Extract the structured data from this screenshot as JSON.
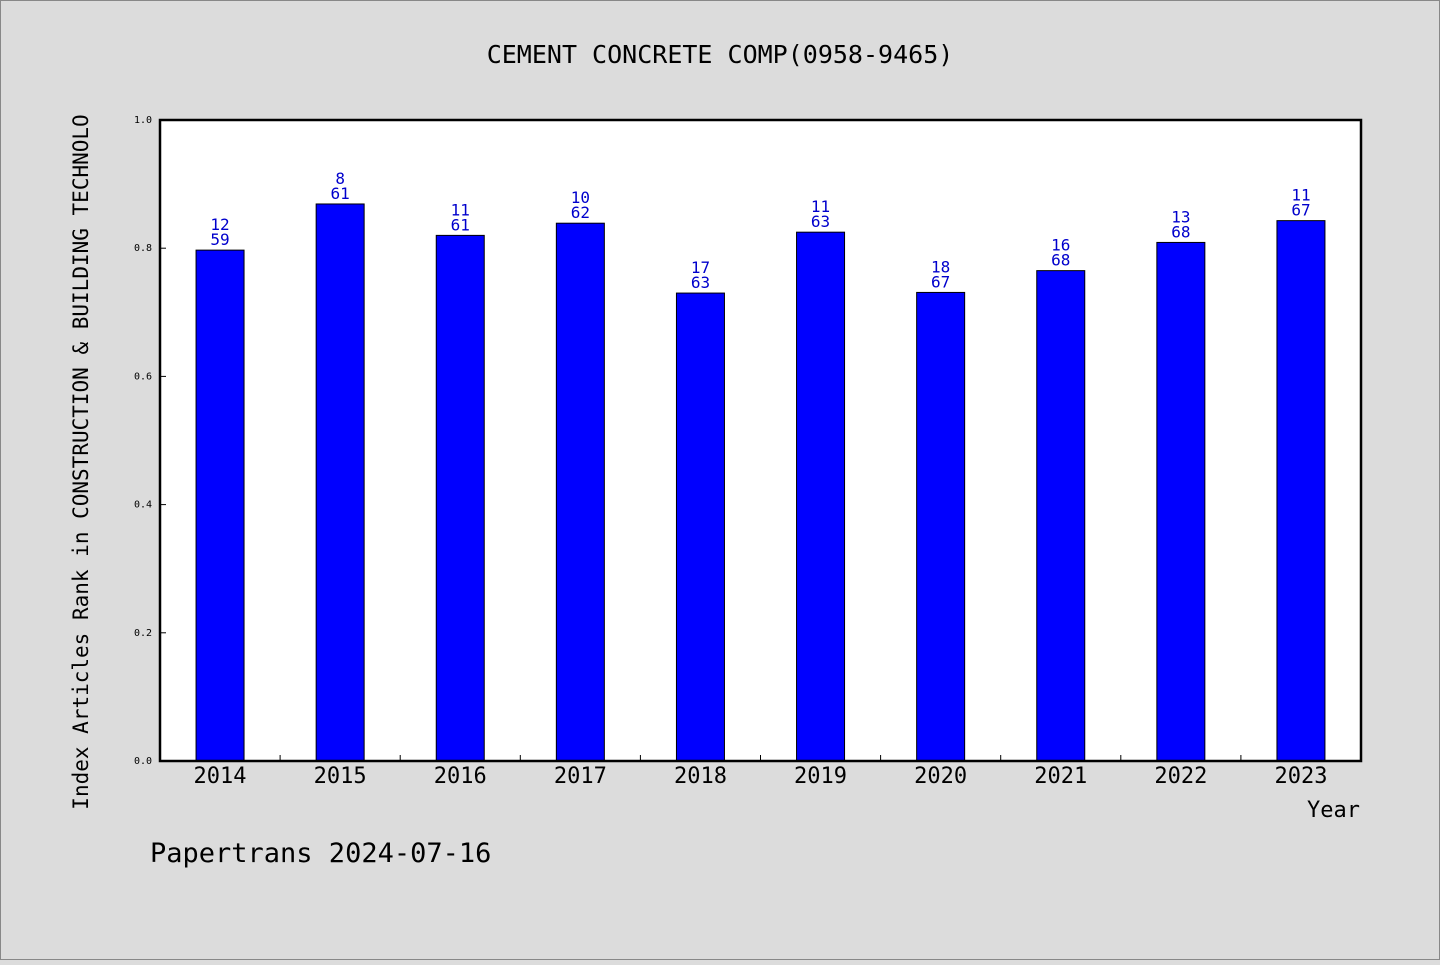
{
  "chart_data": {
    "type": "bar",
    "title": "CEMENT CONCRETE COMP(0958-9465)",
    "xlabel": "Year",
    "ylabel": "Index Articles Rank in CONSTRUCTION & BUILDING TECHNOLO",
    "ylim": [
      0,
      1.0
    ],
    "yticks": [
      "0.0",
      "0.2",
      "0.4",
      "0.6",
      "0.8",
      "1.0"
    ],
    "grid": false,
    "bar_color": "#0000ff",
    "label_color": "#0000cc",
    "categories": [
      "2014",
      "2015",
      "2016",
      "2017",
      "2018",
      "2019",
      "2020",
      "2021",
      "2022",
      "2023"
    ],
    "values": [
      0.797,
      0.869,
      0.82,
      0.839,
      0.73,
      0.825,
      0.731,
      0.765,
      0.809,
      0.843
    ],
    "ranks": [
      "12",
      "8",
      "11",
      "10",
      "17",
      "11",
      "18",
      "16",
      "13",
      "11"
    ],
    "totals": [
      "59",
      "61",
      "61",
      "62",
      "63",
      "63",
      "67",
      "68",
      "68",
      "67"
    ]
  },
  "footer": {
    "text": "Papertrans 2024-07-16"
  }
}
